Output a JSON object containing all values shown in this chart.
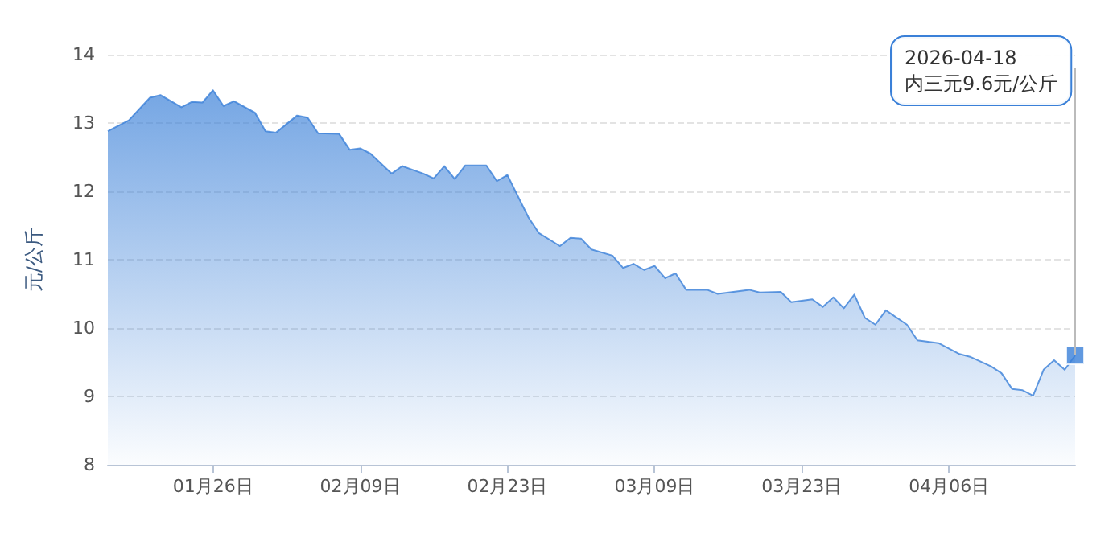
{
  "chart_data": {
    "type": "area",
    "ylabel": "元/公斤",
    "x": [
      "2026-01-16",
      "2026-01-18",
      "2026-01-20",
      "2026-01-21",
      "2026-01-23",
      "2026-01-24",
      "2026-01-25",
      "2026-01-26",
      "2026-01-27",
      "2026-01-28",
      "2026-01-30",
      "2026-01-31",
      "2026-02-01",
      "2026-02-03",
      "2026-02-04",
      "2026-02-05",
      "2026-02-07",
      "2026-02-08",
      "2026-02-09",
      "2026-02-10",
      "2026-02-12",
      "2026-02-13",
      "2026-02-15",
      "2026-02-16",
      "2026-02-17",
      "2026-02-18",
      "2026-02-19",
      "2026-02-21",
      "2026-02-22",
      "2026-02-23",
      "2026-02-25",
      "2026-02-26",
      "2026-02-28",
      "2026-03-01",
      "2026-03-02",
      "2026-03-03",
      "2026-03-05",
      "2026-03-06",
      "2026-03-07",
      "2026-03-08",
      "2026-03-09",
      "2026-03-10",
      "2026-03-11",
      "2026-03-12",
      "2026-03-14",
      "2026-03-15",
      "2026-03-18",
      "2026-03-19",
      "2026-03-21",
      "2026-03-22",
      "2026-03-24",
      "2026-03-25",
      "2026-03-26",
      "2026-03-27",
      "2026-03-28",
      "2026-03-29",
      "2026-03-30",
      "2026-03-31",
      "2026-04-02",
      "2026-04-03",
      "2026-04-05",
      "2026-04-07",
      "2026-04-08",
      "2026-04-10",
      "2026-04-11",
      "2026-04-12",
      "2026-04-13",
      "2026-04-14",
      "2026-04-15",
      "2026-04-16",
      "2026-04-17",
      "2026-04-18"
    ],
    "series": [
      {
        "color": "#3a80d8",
        "values": [
          12.88,
          13.04,
          13.37,
          13.41,
          13.23,
          13.31,
          13.3,
          13.48,
          13.25,
          13.32,
          13.15,
          12.88,
          12.86,
          13.11,
          13.08,
          12.85,
          12.84,
          12.61,
          12.63,
          12.55,
          12.26,
          12.37,
          12.26,
          12.19,
          12.37,
          12.18,
          12.38,
          12.38,
          12.15,
          12.24,
          11.62,
          11.39,
          11.2,
          11.32,
          11.31,
          11.15,
          11.06,
          10.88,
          10.94,
          10.85,
          10.91,
          10.73,
          10.8,
          10.56,
          10.56,
          10.5,
          10.56,
          10.52,
          10.53,
          10.38,
          10.42,
          10.31,
          10.45,
          10.29,
          10.49,
          10.15,
          10.05,
          10.26,
          10.05,
          9.82,
          9.78,
          9.62,
          9.58,
          9.44,
          9.34,
          9.11,
          9.09,
          9.01,
          9.39,
          9.53,
          9.39,
          9.6
        ]
      }
    ],
    "xlim": [
      "2026-01-16",
      "2026-04-18"
    ],
    "xticks": [
      {
        "value": "2026-01-26",
        "label": "01月26日"
      },
      {
        "value": "2026-02-09",
        "label": "02月09日"
      },
      {
        "value": "2026-02-23",
        "label": "02月23日"
      },
      {
        "value": "2026-03-09",
        "label": "03月09日"
      },
      {
        "value": "2026-03-23",
        "label": "03月23日"
      },
      {
        "value": "2026-04-06",
        "label": "04月06日"
      }
    ],
    "ylim": [
      8,
      14
    ],
    "yticks": [
      8,
      9,
      10,
      11,
      12,
      13,
      14
    ],
    "grid": "y",
    "annotations": [
      "2026-04-18\n内三元9.6元/公斤"
    ]
  }
}
